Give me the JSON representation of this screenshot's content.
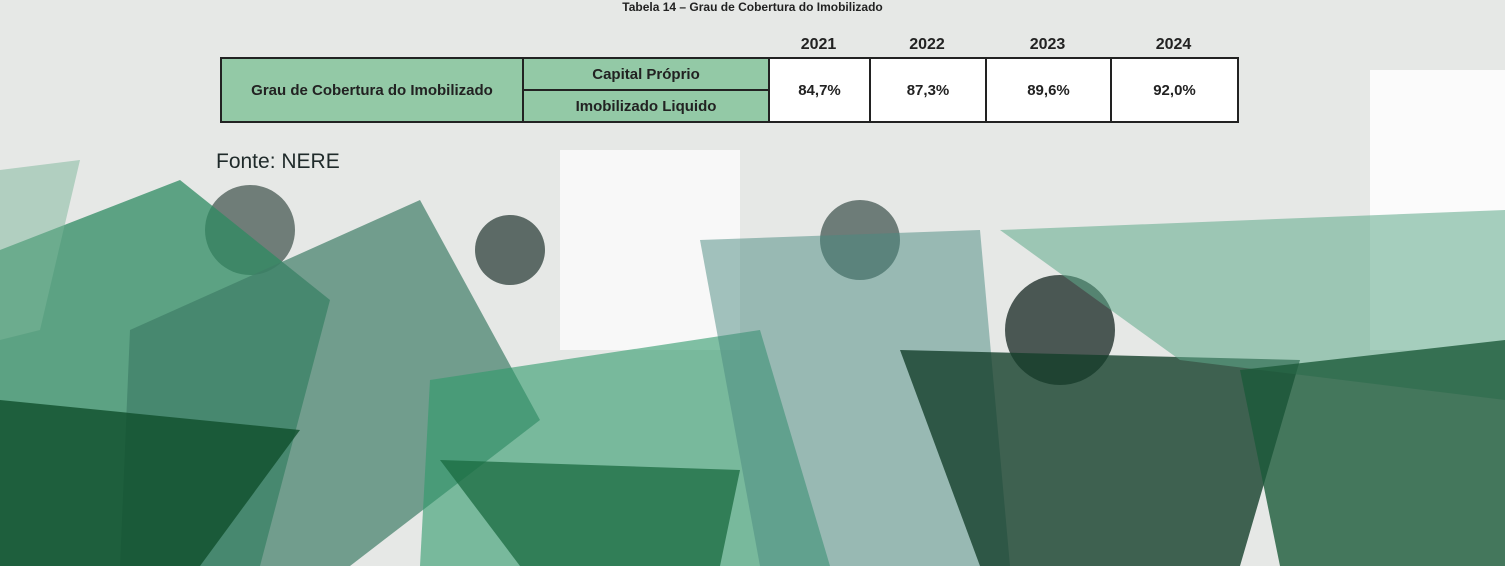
{
  "title": "Tabela 14 – Grau de Cobertura do Imobilizado",
  "table": {
    "years": [
      "2021",
      "2022",
      "2023",
      "2024"
    ],
    "row_label": "Grau de Cobertura do Imobilizado",
    "sub_labels": [
      "Capital Próprio",
      "Imobilizado Liquido"
    ],
    "values": [
      "84,7%",
      "87,3%",
      "89,6%",
      "92,0%"
    ]
  },
  "source": "Fonte: NERE"
}
